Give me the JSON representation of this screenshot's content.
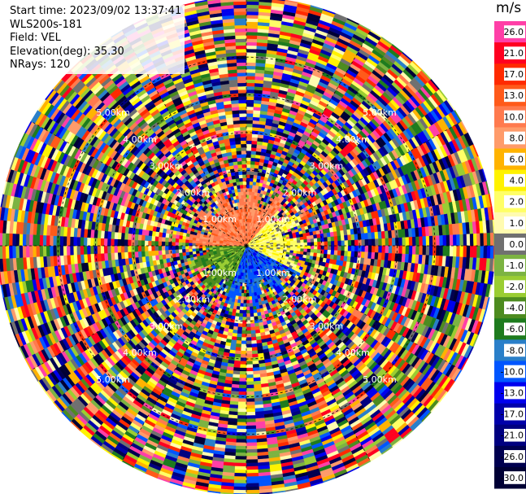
{
  "header": {
    "start_time": "Start time: 2023/09/02 13:37:41",
    "instrument": "WLS200s-181",
    "field": "Field: VEL",
    "elevation": "Elevation(deg): 35.30",
    "nrays": "NRays: 120"
  },
  "colorbar": {
    "unit": "m/s",
    "levels": [
      {
        "label": "26.0",
        "color": "#ff3fa7"
      },
      {
        "label": "21.0",
        "color": "#ff0020"
      },
      {
        "label": "17.0",
        "color": "#ff2a00"
      },
      {
        "label": "13.0",
        "color": "#ff5a1a"
      },
      {
        "label": "10.0",
        "color": "#ff7a4e"
      },
      {
        "label": "8.0",
        "color": "#ff9b6a"
      },
      {
        "label": "6.0",
        "color": "#ffb300"
      },
      {
        "label": "4.0",
        "color": "#fff200"
      },
      {
        "label": "2.0",
        "color": "#ffff66"
      },
      {
        "label": "1.0",
        "color": "#fffbb0"
      },
      {
        "label": "0.0",
        "color": "#707070"
      },
      {
        "label": "-1.0",
        "color": "#7cb342"
      },
      {
        "label": "-2.0",
        "color": "#9acd32"
      },
      {
        "label": "-4.0",
        "color": "#4d8b1f"
      },
      {
        "label": "-6.0",
        "color": "#1e7b1e"
      },
      {
        "label": "-8.0",
        "color": "#2a7fc9"
      },
      {
        "label": "-10.0",
        "color": "#0055ff"
      },
      {
        "label": "-13.0",
        "color": "#0000ee"
      },
      {
        "label": "-17.0",
        "color": "#0000aa"
      },
      {
        "label": "-21.0",
        "color": "#000080"
      },
      {
        "label": "-26.0",
        "color": "#000050"
      },
      {
        "label": "-30.0",
        "color": "#000035"
      }
    ]
  },
  "chart_data": {
    "type": "heatmap",
    "projection": "polar PPI",
    "field": "VEL",
    "unit": "m/s",
    "elevation_deg": 35.3,
    "nrays": 120,
    "range_rings_km": [
      1.0,
      2.0,
      3.0,
      4.0,
      5.0
    ],
    "ring_labels": [
      "1.00km",
      "2.00km",
      "3.00km",
      "4.00km",
      "5.00km"
    ],
    "max_range_km": 6.6,
    "inner_sector_summary": {
      "north_west_quadrant": "positive velocities 8-13 m/s (orange/red)",
      "east": "weak positive 1-4 m/s (yellow)",
      "south_east_quadrant": "negative velocities -8 to -13 m/s (blue)",
      "south_west": "negative -2 to -6 m/s (green)"
    },
    "outer_region": "noise, random velocity values across the colour scale"
  }
}
